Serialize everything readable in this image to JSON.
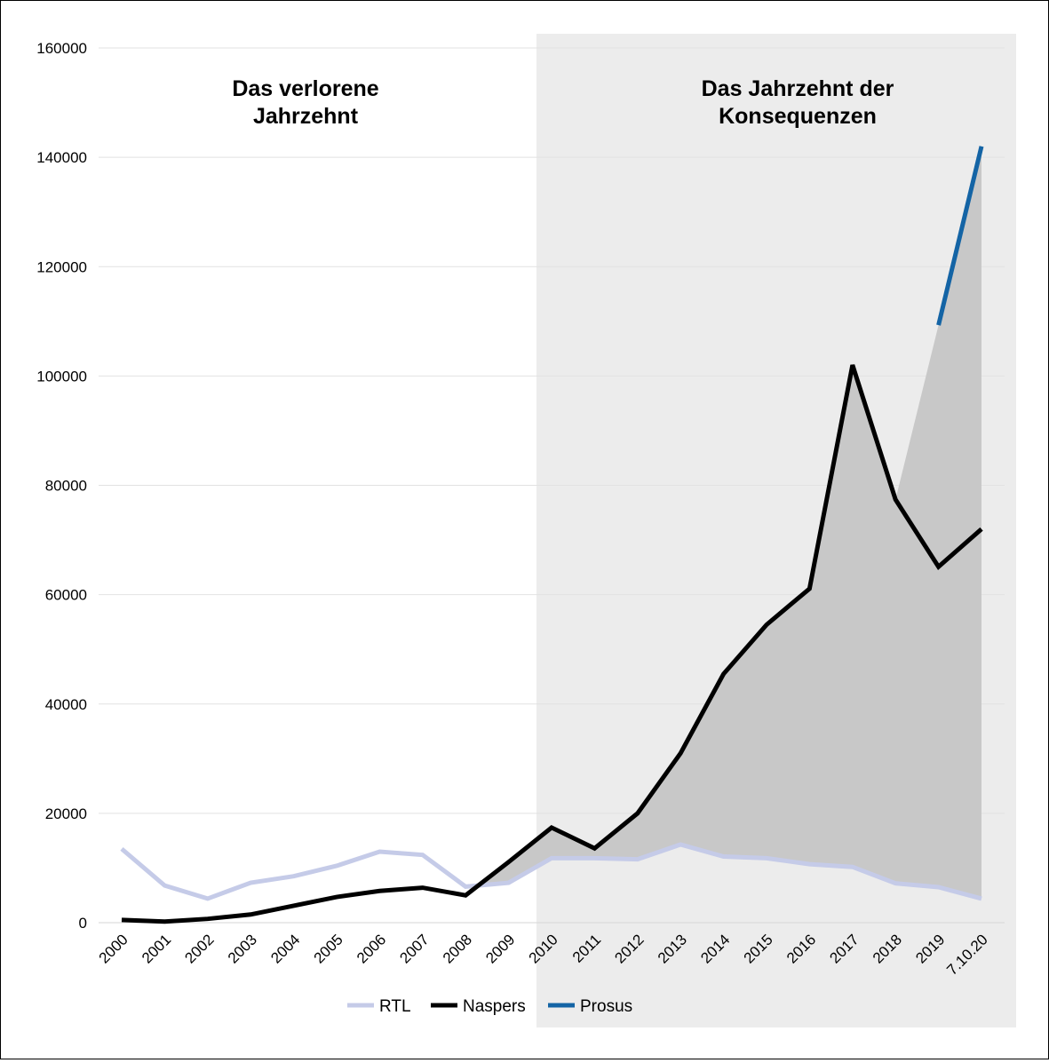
{
  "chart_data": {
    "type": "line",
    "title": "",
    "xlabel": "",
    "ylabel": "",
    "ylim": [
      0,
      160000
    ],
    "yticks": [
      0,
      20000,
      40000,
      60000,
      80000,
      100000,
      120000,
      140000,
      160000
    ],
    "ytick_labels": [
      "0",
      "20000",
      "40000",
      "60000",
      "80000",
      "100000",
      "120000",
      "140000",
      "160000"
    ],
    "categories": [
      "2000",
      "2001",
      "2002",
      "2003",
      "2004",
      "2005",
      "2006",
      "2007",
      "2008",
      "2009",
      "2010",
      "2011",
      "2012",
      "2013",
      "2014",
      "2015",
      "2016",
      "2017",
      "2018",
      "2019",
      "7.10.20"
    ],
    "grid": "horizontal",
    "legend_position": "bottom",
    "series": [
      {
        "name": "RTL",
        "color": "#c5cbe8",
        "values": [
          13500,
          6800,
          4400,
          7300,
          8500,
          10400,
          13000,
          12400,
          6600,
          7300,
          11800,
          11800,
          11600,
          14300,
          12100,
          11800,
          10700,
          10200,
          7200,
          6500,
          4400
        ]
      },
      {
        "name": "Naspers",
        "color": "#000000",
        "values": [
          500,
          200,
          700,
          1500,
          3100,
          4700,
          5800,
          6400,
          5000,
          11100,
          17400,
          13600,
          20000,
          31000,
          45500,
          54500,
          61100,
          102000,
          77400,
          65100,
          72000
        ]
      },
      {
        "name": "Prosus",
        "color": "#1464a5",
        "values": [
          null,
          null,
          null,
          null,
          null,
          null,
          null,
          null,
          null,
          null,
          null,
          null,
          null,
          null,
          null,
          null,
          null,
          null,
          null,
          109300,
          142000
        ]
      }
    ],
    "shaded_region": {
      "from": "2010",
      "to": "7.10.20",
      "color": "#ececec"
    },
    "gap_fill": {
      "color": "#c8c8c8",
      "between": "RTL and max(Naspers, Naspers+Prosus)"
    },
    "annotations": [
      {
        "text": "Das verlorene Jahrzehnt",
        "lines": [
          "Das verlorene",
          "Jahrzehnt"
        ]
      },
      {
        "text": "Das Jahrzehnt der Konsequenzen",
        "lines": [
          "Das Jahrzehnt der",
          "Konsequenzen"
        ]
      }
    ]
  }
}
